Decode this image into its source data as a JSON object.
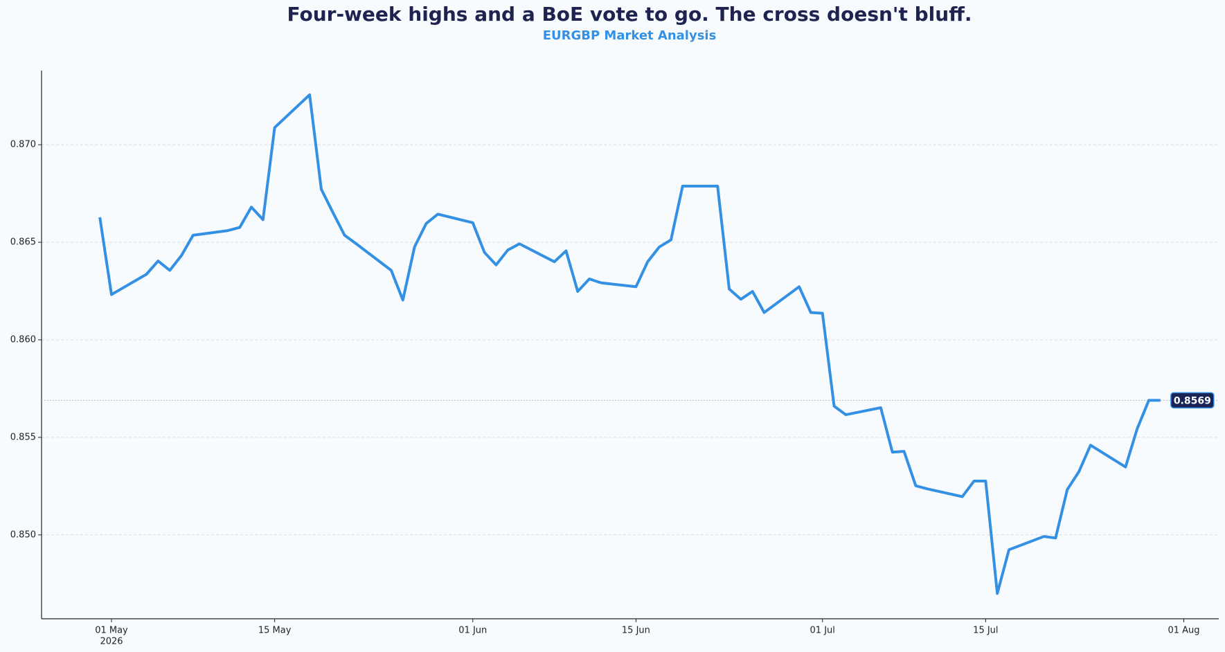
{
  "chart_data": {
    "type": "line",
    "title": "Four-week highs and a BoE vote to go. The cross doesn't bluff.",
    "subtitle": "EURGBP Market Analysis",
    "x": [
      "2026-04-30",
      "2026-05-01",
      "2026-05-04",
      "2026-05-05",
      "2026-05-06",
      "2026-05-07",
      "2026-05-08",
      "2026-05-11",
      "2026-05-12",
      "2026-05-13",
      "2026-05-14",
      "2026-05-15",
      "2026-05-18",
      "2026-05-19",
      "2026-05-20",
      "2026-05-21",
      "2026-05-22",
      "2026-05-25",
      "2026-05-26",
      "2026-05-27",
      "2026-05-28",
      "2026-05-29",
      "2026-06-01",
      "2026-06-02",
      "2026-06-03",
      "2026-06-04",
      "2026-06-05",
      "2026-06-08",
      "2026-06-09",
      "2026-06-10",
      "2026-06-11",
      "2026-06-12",
      "2026-06-15",
      "2026-06-16",
      "2026-06-17",
      "2026-06-18",
      "2026-06-19",
      "2026-06-22",
      "2026-06-23",
      "2026-06-24",
      "2026-06-25",
      "2026-06-26",
      "2026-06-29",
      "2026-06-30",
      "2026-07-01",
      "2026-07-02",
      "2026-07-03",
      "2026-07-06",
      "2026-07-07",
      "2026-07-08",
      "2026-07-09",
      "2026-07-10",
      "2026-07-13",
      "2026-07-14",
      "2026-07-15",
      "2026-07-16",
      "2026-07-17",
      "2026-07-20",
      "2026-07-21",
      "2026-07-22",
      "2026-07-23",
      "2026-07-24",
      "2026-07-27",
      "2026-07-28",
      "2026-07-29",
      "2026-07-30"
    ],
    "series": [
      {
        "name": "EURGBP",
        "color": "#3390e3",
        "values": [
          0.86628,
          0.86232,
          0.86336,
          0.86404,
          0.86356,
          0.86432,
          0.86536,
          0.8656,
          0.86576,
          0.8668,
          0.86616,
          0.87088,
          0.87256,
          0.86772,
          0.86652,
          0.86536,
          0.86492,
          0.86356,
          0.86204,
          0.86476,
          0.86596,
          0.86644,
          0.866,
          0.86448,
          0.86384,
          0.8646,
          0.86492,
          0.864,
          0.86456,
          0.86248,
          0.86312,
          0.86292,
          0.86272,
          0.864,
          0.86476,
          0.86512,
          0.86788,
          0.86788,
          0.8626,
          0.86208,
          0.86248,
          0.8614,
          0.86272,
          0.8614,
          0.86136,
          0.8566,
          0.85616,
          0.85652,
          0.85424,
          0.85428,
          0.85252,
          0.85236,
          0.85196,
          0.85276,
          0.85276,
          0.847,
          0.84924,
          0.84992,
          0.84984,
          0.85232,
          0.85324,
          0.8546,
          0.85348,
          0.85544,
          0.8569,
          0.8569
        ]
      }
    ],
    "xlim": [
      "2026-04-25",
      "2026-08-04"
    ],
    "xticks": [
      {
        "value": "2026-05-01",
        "label": "01 May",
        "year": "2026"
      },
      {
        "value": "2026-05-15",
        "label": "15 May"
      },
      {
        "value": "2026-06-01",
        "label": "01 Jun"
      },
      {
        "value": "2026-06-15",
        "label": "15 Jun"
      },
      {
        "value": "2026-07-01",
        "label": "01 Jul"
      },
      {
        "value": "2026-07-15",
        "label": "15 Jul"
      },
      {
        "value": "2026-08-01",
        "label": "01 Aug"
      }
    ],
    "ylim": [
      0.8457,
      0.8738
    ],
    "yticks": [
      {
        "value": 0.85,
        "label": "0.850"
      },
      0.855,
      {
        "value": 0.86,
        "label": "0.860"
      },
      0.865,
      {
        "value": 0.87,
        "label": "0.870"
      }
    ],
    "grid": true
  }
}
